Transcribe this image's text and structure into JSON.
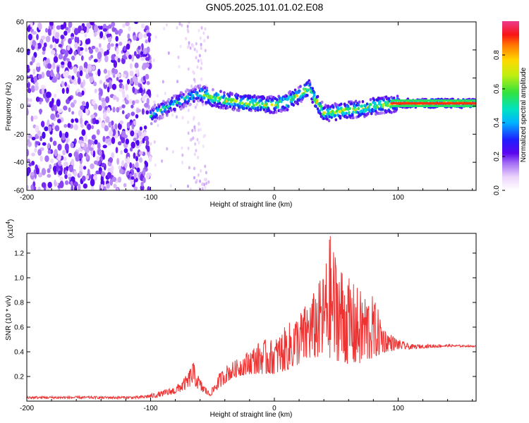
{
  "title": "GN05.2025.101.01.02.E08",
  "chart_data": [
    {
      "type": "heatmap",
      "xlabel": "Height of straight line (km)",
      "ylabel": "Frequency (Hz)",
      "xlim": [
        -200,
        163
      ],
      "ylim": [
        -60,
        60
      ],
      "xticks": [
        -200,
        -100,
        0,
        100
      ],
      "yticks": [
        60,
        40,
        20,
        0,
        -20,
        -40,
        -60
      ],
      "grid": false,
      "colorbar": {
        "label": "Normalized spectral amplitude",
        "range": [
          0,
          1
        ],
        "ticks": [
          0.0,
          0.2,
          0.4,
          0.6,
          0.8
        ]
      },
      "ridge": {
        "x": [
          -100,
          -90,
          -80,
          -70,
          -60,
          -50,
          -40,
          -30,
          -20,
          -10,
          0,
          10,
          20,
          28,
          35,
          40,
          50,
          60,
          70,
          80,
          90,
          100,
          120,
          140,
          163
        ],
        "y": [
          -7,
          -2,
          2,
          6,
          9,
          6,
          4,
          3,
          2,
          1,
          1,
          3,
          8,
          13,
          2,
          -5,
          -4,
          -3,
          -2,
          0,
          1,
          2,
          2,
          2,
          2
        ]
      }
    },
    {
      "type": "line",
      "xlabel": "Height of straight line (km)",
      "ylabel": "SNR (10 * v/v)",
      "y_multiplier": "(x10",
      "y_multiplier_exp": "4",
      "xlim": [
        -200,
        163
      ],
      "ylim": [
        0,
        1.36
      ],
      "xticks": [
        -200,
        -100,
        0,
        100
      ],
      "yticks": [
        0.2,
        0.4,
        0.6,
        0.8,
        1.0,
        1.2
      ],
      "ytick_labels": [
        "0.2",
        "0.4",
        "0.6",
        "0.8",
        "1.0",
        "1.2"
      ],
      "color": "#ee3333",
      "grid": false,
      "envelope": {
        "x": [
          -200,
          -160,
          -110,
          -95,
          -80,
          -70,
          -66,
          -60,
          -52,
          -45,
          -38,
          -30,
          -20,
          -10,
          0,
          10,
          20,
          30,
          40,
          45,
          50,
          60,
          70,
          80,
          90,
          100,
          110,
          120,
          140,
          163
        ],
        "baseline": [
          0.02,
          0.02,
          0.02,
          0.03,
          0.06,
          0.1,
          0.14,
          0.08,
          0.04,
          0.1,
          0.16,
          0.2,
          0.22,
          0.22,
          0.22,
          0.25,
          0.3,
          0.35,
          0.35,
          0.35,
          0.33,
          0.3,
          0.3,
          0.35,
          0.4,
          0.42,
          0.42,
          0.43,
          0.44,
          0.44
        ],
        "peak": [
          0.04,
          0.04,
          0.04,
          0.07,
          0.12,
          0.22,
          0.33,
          0.18,
          0.07,
          0.22,
          0.3,
          0.34,
          0.42,
          0.5,
          0.5,
          0.62,
          0.72,
          0.85,
          1.05,
          1.36,
          1.2,
          1.0,
          0.9,
          0.85,
          0.58,
          0.5,
          0.46,
          0.46,
          0.46,
          0.45
        ]
      }
    }
  ]
}
